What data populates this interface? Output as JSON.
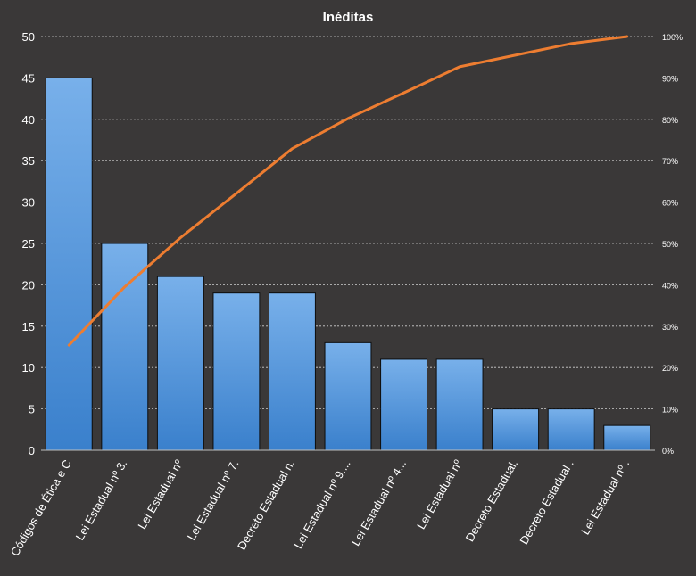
{
  "chart_data": {
    "type": "bar",
    "title": "Inéditas",
    "categories": [
      "Códigos de Ética e C",
      "Lei Estadual nº 3.",
      "Lei Estadual nº",
      "Lei Estadual nº 7.",
      "Decreto Estadual n.",
      "Lei Estadual nº 9....",
      "Lei Estadual nº 4...",
      "Lei Estadual nº",
      "Decreto Estadual.",
      "Decreto Estadual .",
      "Lei Estadual nº ."
    ],
    "series": [
      {
        "type": "bar",
        "values": [
          45,
          25,
          21,
          19,
          19,
          13,
          11,
          11,
          5,
          5,
          3
        ],
        "color": "#4a90d9"
      },
      {
        "type": "line",
        "axis": "secondary",
        "values": [
          25.4,
          39.5,
          51.4,
          62.1,
          72.9,
          80.2,
          86.4,
          92.7,
          95.5,
          98.3,
          100
        ],
        "color": "#ed7d31"
      }
    ],
    "ylim": [
      0,
      50
    ],
    "yticks": [
      "0",
      "5",
      "10",
      "15",
      "20",
      "25",
      "30",
      "35",
      "40",
      "45",
      "50"
    ],
    "y2lim": [
      0,
      100
    ],
    "y2ticks": [
      "0%",
      "10%",
      "20%",
      "30%",
      "40%",
      "50%",
      "60%",
      "70%",
      "80%",
      "90%",
      "100%"
    ],
    "grid": true,
    "legend": "none"
  }
}
